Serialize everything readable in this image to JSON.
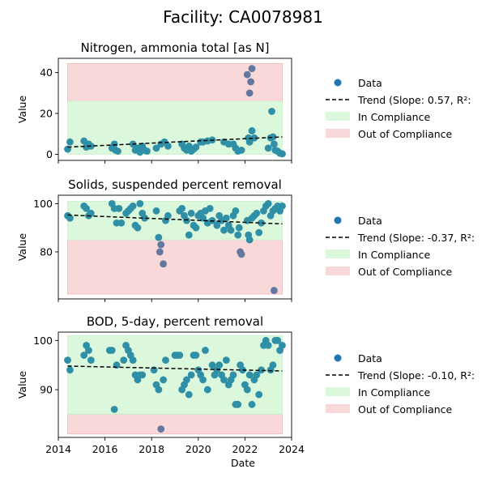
{
  "suptitle": "Facility: CA0078981",
  "x_axis": {
    "label": "Date",
    "range": [
      2014.0,
      2024.0
    ],
    "ticks": [
      2014,
      2016,
      2018,
      2020,
      2022,
      2024
    ]
  },
  "legend_labels": {
    "data": "Data",
    "in": "In Compliance",
    "out": "Out of Compliance"
  },
  "colors": {
    "points": "#2e8fa6",
    "points_out": "#63779f",
    "in_compliance": "#dcf8dc",
    "out_compliance": "#f8d8d8",
    "trend": "#000000",
    "legend_marker": "#1f77b4"
  },
  "chart_data": [
    {
      "type": "scatter",
      "title": "Nitrogen, ammonia total [as N]",
      "ylabel": "Value",
      "ylim": [
        -3,
        47
      ],
      "yticks": [
        0,
        20,
        40
      ],
      "x_span": [
        2014.4,
        2023.6
      ],
      "in_compliance": [
        0,
        26
      ],
      "out_of_compliance": [
        26,
        44.5
      ],
      "trend": {
        "label": "Trend (Slope: 0.57, R²:",
        "start": [
          2014.4,
          3.5
        ],
        "end": [
          2023.6,
          8.5
        ]
      },
      "points": [
        [
          2014.4,
          2.5
        ],
        [
          2014.5,
          6
        ],
        [
          2015.1,
          6.5
        ],
        [
          2015.2,
          3.5
        ],
        [
          2015.3,
          5
        ],
        [
          2015.4,
          4
        ],
        [
          2016.3,
          3
        ],
        [
          2016.4,
          5
        ],
        [
          2016.45,
          2
        ],
        [
          2016.55,
          1.5
        ],
        [
          2017.2,
          5
        ],
        [
          2017.3,
          2
        ],
        [
          2017.4,
          3
        ],
        [
          2017.5,
          1
        ],
        [
          2017.6,
          4
        ],
        [
          2017.7,
          2
        ],
        [
          2017.8,
          1.5
        ],
        [
          2018.2,
          3
        ],
        [
          2018.4,
          5
        ],
        [
          2018.55,
          6
        ],
        [
          2018.7,
          4
        ],
        [
          2019.3,
          5
        ],
        [
          2019.4,
          3
        ],
        [
          2019.5,
          2
        ],
        [
          2019.6,
          4
        ],
        [
          2019.7,
          1.5
        ],
        [
          2019.8,
          2.5
        ],
        [
          2019.9,
          3.5
        ],
        [
          2020.1,
          6
        ],
        [
          2020.2,
          6
        ],
        [
          2020.4,
          6.5
        ],
        [
          2020.6,
          7
        ],
        [
          2021.1,
          6
        ],
        [
          2021.3,
          5
        ],
        [
          2021.5,
          5
        ],
        [
          2021.6,
          3
        ],
        [
          2021.7,
          1.5
        ],
        [
          2021.85,
          2
        ],
        [
          2022.1,
          39
        ],
        [
          2022.2,
          30
        ],
        [
          2022.25,
          35.5
        ],
        [
          2022.3,
          42
        ],
        [
          2022.15,
          8
        ],
        [
          2022.2,
          6
        ],
        [
          2022.3,
          11.5
        ],
        [
          2022.4,
          8
        ],
        [
          2023.0,
          3
        ],
        [
          2023.1,
          8
        ],
        [
          2023.15,
          21
        ],
        [
          2023.2,
          8.5
        ],
        [
          2023.25,
          5
        ],
        [
          2023.3,
          2
        ],
        [
          2023.4,
          1.5
        ],
        [
          2023.5,
          0.5
        ],
        [
          2023.6,
          0.2
        ]
      ]
    },
    {
      "type": "scatter",
      "title": "Solids, suspended percent removal",
      "ylabel": "Value",
      "ylim": [
        60.5,
        103.5
      ],
      "yticks": [
        80,
        100
      ],
      "x_span": [
        2014.4,
        2023.6
      ],
      "in_compliance": [
        85,
        101
      ],
      "out_of_compliance": [
        62.5,
        85
      ],
      "trend": {
        "label": "Trend (Slope: -0.37, R²:",
        "start": [
          2014.4,
          95.3
        ],
        "end": [
          2023.6,
          91.6
        ]
      },
      "points": [
        [
          2014.4,
          95
        ],
        [
          2014.5,
          94
        ],
        [
          2015.1,
          99
        ],
        [
          2015.2,
          98
        ],
        [
          2015.3,
          95
        ],
        [
          2015.4,
          96
        ],
        [
          2016.3,
          100
        ],
        [
          2016.4,
          98
        ],
        [
          2016.5,
          92
        ],
        [
          2016.6,
          98
        ],
        [
          2016.7,
          92
        ],
        [
          2016.9,
          96
        ],
        [
          2017.0,
          97
        ],
        [
          2017.1,
          98
        ],
        [
          2017.2,
          99
        ],
        [
          2017.3,
          91
        ],
        [
          2017.4,
          90
        ],
        [
          2017.5,
          100
        ],
        [
          2017.6,
          96
        ],
        [
          2017.7,
          94
        ],
        [
          2018.2,
          97
        ],
        [
          2018.3,
          86
        ],
        [
          2018.35,
          80
        ],
        [
          2018.4,
          83
        ],
        [
          2018.5,
          75
        ],
        [
          2018.6,
          93
        ],
        [
          2018.7,
          95
        ],
        [
          2019.2,
          97
        ],
        [
          2019.3,
          98
        ],
        [
          2019.4,
          95
        ],
        [
          2019.5,
          93
        ],
        [
          2019.6,
          87
        ],
        [
          2019.7,
          96
        ],
        [
          2019.8,
          91
        ],
        [
          2019.9,
          90
        ],
        [
          2020.0,
          95
        ],
        [
          2020.1,
          96
        ],
        [
          2020.2,
          94
        ],
        [
          2020.3,
          97
        ],
        [
          2020.4,
          92
        ],
        [
          2020.5,
          98
        ],
        [
          2020.6,
          93
        ],
        [
          2020.8,
          91
        ],
        [
          2020.9,
          95
        ],
        [
          2021.0,
          93
        ],
        [
          2021.1,
          89
        ],
        [
          2021.2,
          94
        ],
        [
          2021.3,
          91
        ],
        [
          2021.4,
          89
        ],
        [
          2021.5,
          95
        ],
        [
          2021.6,
          97
        ],
        [
          2021.7,
          87
        ],
        [
          2021.75,
          90
        ],
        [
          2021.8,
          80
        ],
        [
          2021.85,
          79
        ],
        [
          2022.1,
          93
        ],
        [
          2022.15,
          87
        ],
        [
          2022.2,
          85
        ],
        [
          2022.3,
          94
        ],
        [
          2022.4,
          95
        ],
        [
          2022.5,
          96
        ],
        [
          2022.6,
          88
        ],
        [
          2022.7,
          92
        ],
        [
          2022.8,
          97
        ],
        [
          2022.9,
          99
        ],
        [
          2023.0,
          100
        ],
        [
          2023.1,
          95
        ],
        [
          2023.2,
          97
        ],
        [
          2023.25,
          64
        ],
        [
          2023.3,
          98
        ],
        [
          2023.4,
          99
        ],
        [
          2023.5,
          97
        ],
        [
          2023.6,
          99
        ]
      ]
    },
    {
      "type": "scatter",
      "title": "BOD, 5-day, percent removal",
      "ylabel": "Value",
      "ylim": [
        80.3,
        101.7
      ],
      "yticks": [
        90,
        100
      ],
      "x_span": [
        2014.4,
        2023.6
      ],
      "in_compliance": [
        85,
        101
      ],
      "out_of_compliance": [
        81,
        85
      ],
      "trend": {
        "label": "Trend (Slope: -0.10, R²:",
        "start": [
          2014.4,
          94.8
        ],
        "end": [
          2023.6,
          93.8
        ]
      },
      "points": [
        [
          2014.4,
          96
        ],
        [
          2014.5,
          94
        ],
        [
          2015.1,
          97
        ],
        [
          2015.2,
          99
        ],
        [
          2015.3,
          98
        ],
        [
          2015.4,
          96
        ],
        [
          2016.2,
          98
        ],
        [
          2016.3,
          98
        ],
        [
          2016.4,
          86
        ],
        [
          2016.5,
          95
        ],
        [
          2016.8,
          96
        ],
        [
          2016.9,
          99
        ],
        [
          2017.0,
          98
        ],
        [
          2017.1,
          97
        ],
        [
          2017.2,
          96
        ],
        [
          2017.3,
          93
        ],
        [
          2017.4,
          92
        ],
        [
          2017.5,
          93
        ],
        [
          2017.6,
          93
        ],
        [
          2018.1,
          94
        ],
        [
          2018.2,
          91
        ],
        [
          2018.3,
          90
        ],
        [
          2018.4,
          82
        ],
        [
          2018.5,
          92
        ],
        [
          2018.6,
          96
        ],
        [
          2019.0,
          97
        ],
        [
          2019.1,
          97
        ],
        [
          2019.2,
          97
        ],
        [
          2019.3,
          90
        ],
        [
          2019.4,
          91
        ],
        [
          2019.5,
          92
        ],
        [
          2019.6,
          89
        ],
        [
          2019.7,
          93
        ],
        [
          2019.8,
          97
        ],
        [
          2019.9,
          97
        ],
        [
          2020.0,
          94
        ],
        [
          2020.1,
          93
        ],
        [
          2020.2,
          92
        ],
        [
          2020.3,
          98
        ],
        [
          2020.4,
          90
        ],
        [
          2020.6,
          95
        ],
        [
          2020.7,
          93
        ],
        [
          2020.8,
          94
        ],
        [
          2020.9,
          95
        ],
        [
          2021.0,
          93
        ],
        [
          2021.1,
          92
        ],
        [
          2021.2,
          96
        ],
        [
          2021.3,
          91
        ],
        [
          2021.4,
          92
        ],
        [
          2021.5,
          93
        ],
        [
          2021.6,
          87
        ],
        [
          2021.7,
          87
        ],
        [
          2021.8,
          95
        ],
        [
          2021.9,
          94
        ],
        [
          2022.0,
          91
        ],
        [
          2022.1,
          90
        ],
        [
          2022.2,
          93
        ],
        [
          2022.3,
          87
        ],
        [
          2022.4,
          92
        ],
        [
          2022.5,
          93
        ],
        [
          2022.6,
          89
        ],
        [
          2022.7,
          94
        ],
        [
          2022.8,
          99
        ],
        [
          2022.9,
          100
        ],
        [
          2023.0,
          99
        ],
        [
          2023.1,
          94
        ],
        [
          2023.2,
          95
        ],
        [
          2023.3,
          100
        ],
        [
          2023.4,
          100
        ],
        [
          2023.5,
          98
        ],
        [
          2023.6,
          99
        ]
      ]
    }
  ]
}
